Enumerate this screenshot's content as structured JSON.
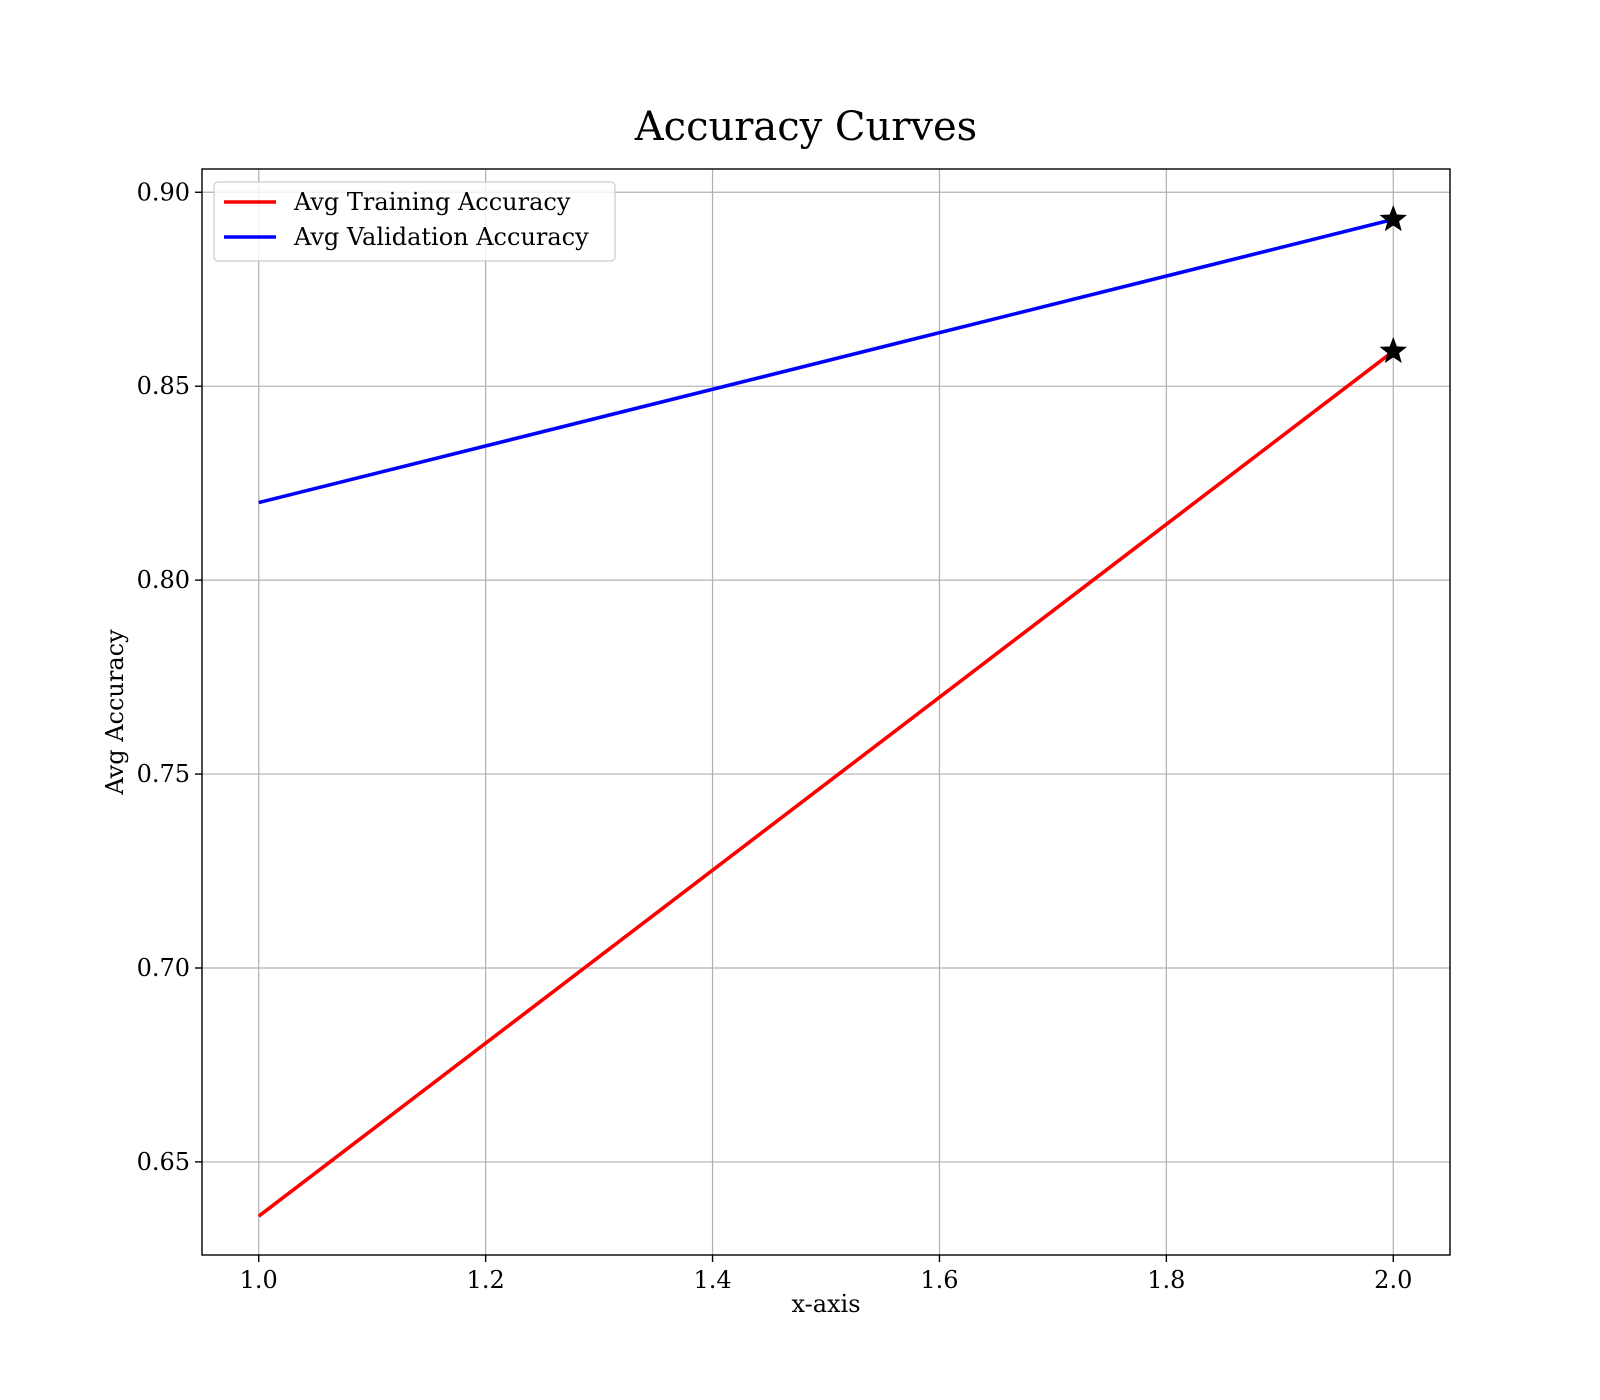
{
  "chart_data": {
    "type": "line",
    "title": "Accuracy Curves",
    "xlabel": "x-axis",
    "ylabel": "Avg Accuracy",
    "xlim": [
      0.95,
      2.05
    ],
    "ylim": [
      0.626,
      0.906
    ],
    "xticks": [
      1.0,
      1.2,
      1.4,
      1.6,
      1.8,
      2.0
    ],
    "xtick_labels": [
      "1.0",
      "1.2",
      "1.4",
      "1.6",
      "1.8",
      "2.0"
    ],
    "yticks": [
      0.65,
      0.7,
      0.75,
      0.8,
      0.85,
      0.9
    ],
    "ytick_labels": [
      "0.65",
      "0.70",
      "0.75",
      "0.80",
      "0.85",
      "0.90"
    ],
    "grid": true,
    "legend_position": "top-left",
    "series": [
      {
        "name": "Avg Training Accuracy",
        "color": "#ff0000",
        "x": [
          1,
          2
        ],
        "y": [
          0.636,
          0.859
        ],
        "best_marker": {
          "x": 2,
          "y": 0.859,
          "shape": "star"
        }
      },
      {
        "name": "Avg Validation Accuracy",
        "color": "#0000ff",
        "x": [
          1,
          2
        ],
        "y": [
          0.82,
          0.893
        ],
        "best_marker": {
          "x": 2,
          "y": 0.893,
          "shape": "star"
        }
      }
    ]
  }
}
